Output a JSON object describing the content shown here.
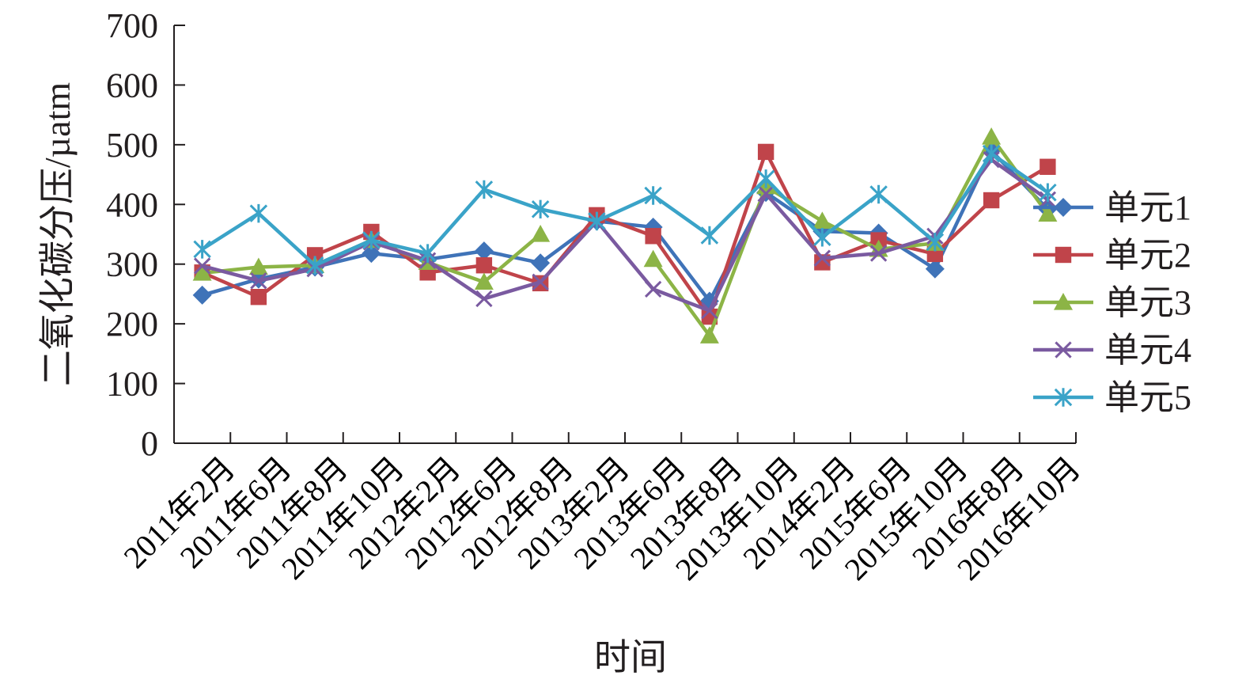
{
  "chart_data": {
    "type": "line",
    "xlabel": "时间",
    "ylabel": "二氧化碳分压/µatm",
    "ylim": [
      0,
      700
    ],
    "yticks": [
      "0",
      "100",
      "200",
      "300",
      "400",
      "500",
      "600",
      "700"
    ],
    "categories": [
      "2011年2月",
      "2011年6月",
      "2011年8月",
      "2011年10月",
      "2012年2月",
      "2012年6月",
      "2012年8月",
      "2013年2月",
      "2013年6月",
      "2013年8月",
      "2013年10月",
      "2014年2月",
      "2015年6月",
      "2015年10月",
      "2016年8月",
      "2016年10月"
    ],
    "grid": false,
    "legend_position": "right",
    "series": [
      {
        "name": "单元1",
        "color": "#3f73b8",
        "marker": "diamond",
        "values": [
          248,
          275,
          295,
          318,
          308,
          322,
          302,
          372,
          362,
          238,
          420,
          355,
          352,
          292,
          490,
          392
        ]
      },
      {
        "name": "单元2",
        "color": "#c0444a",
        "marker": "square",
        "values": [
          286,
          245,
          315,
          354,
          286,
          298,
          268,
          382,
          347,
          212,
          488,
          303,
          340,
          317,
          407,
          463
        ]
      },
      {
        "name": "单元3",
        "color": "#8cb446",
        "marker": "triangle",
        "values": [
          285,
          295,
          298,
          340,
          303,
          270,
          350,
          null,
          308,
          180,
          430,
          372,
          325,
          335,
          513,
          384
        ]
      },
      {
        "name": "单元4",
        "color": "#7a5aa0",
        "marker": "x",
        "values": [
          297,
          272,
          292,
          337,
          306,
          242,
          270,
          372,
          258,
          222,
          418,
          310,
          318,
          347,
          475,
          408
        ]
      },
      {
        "name": "单元5",
        "color": "#3aa3c8",
        "marker": "asterisk",
        "values": [
          325,
          385,
          298,
          340,
          318,
          425,
          392,
          372,
          415,
          348,
          443,
          345,
          417,
          337,
          485,
          420
        ]
      }
    ]
  }
}
